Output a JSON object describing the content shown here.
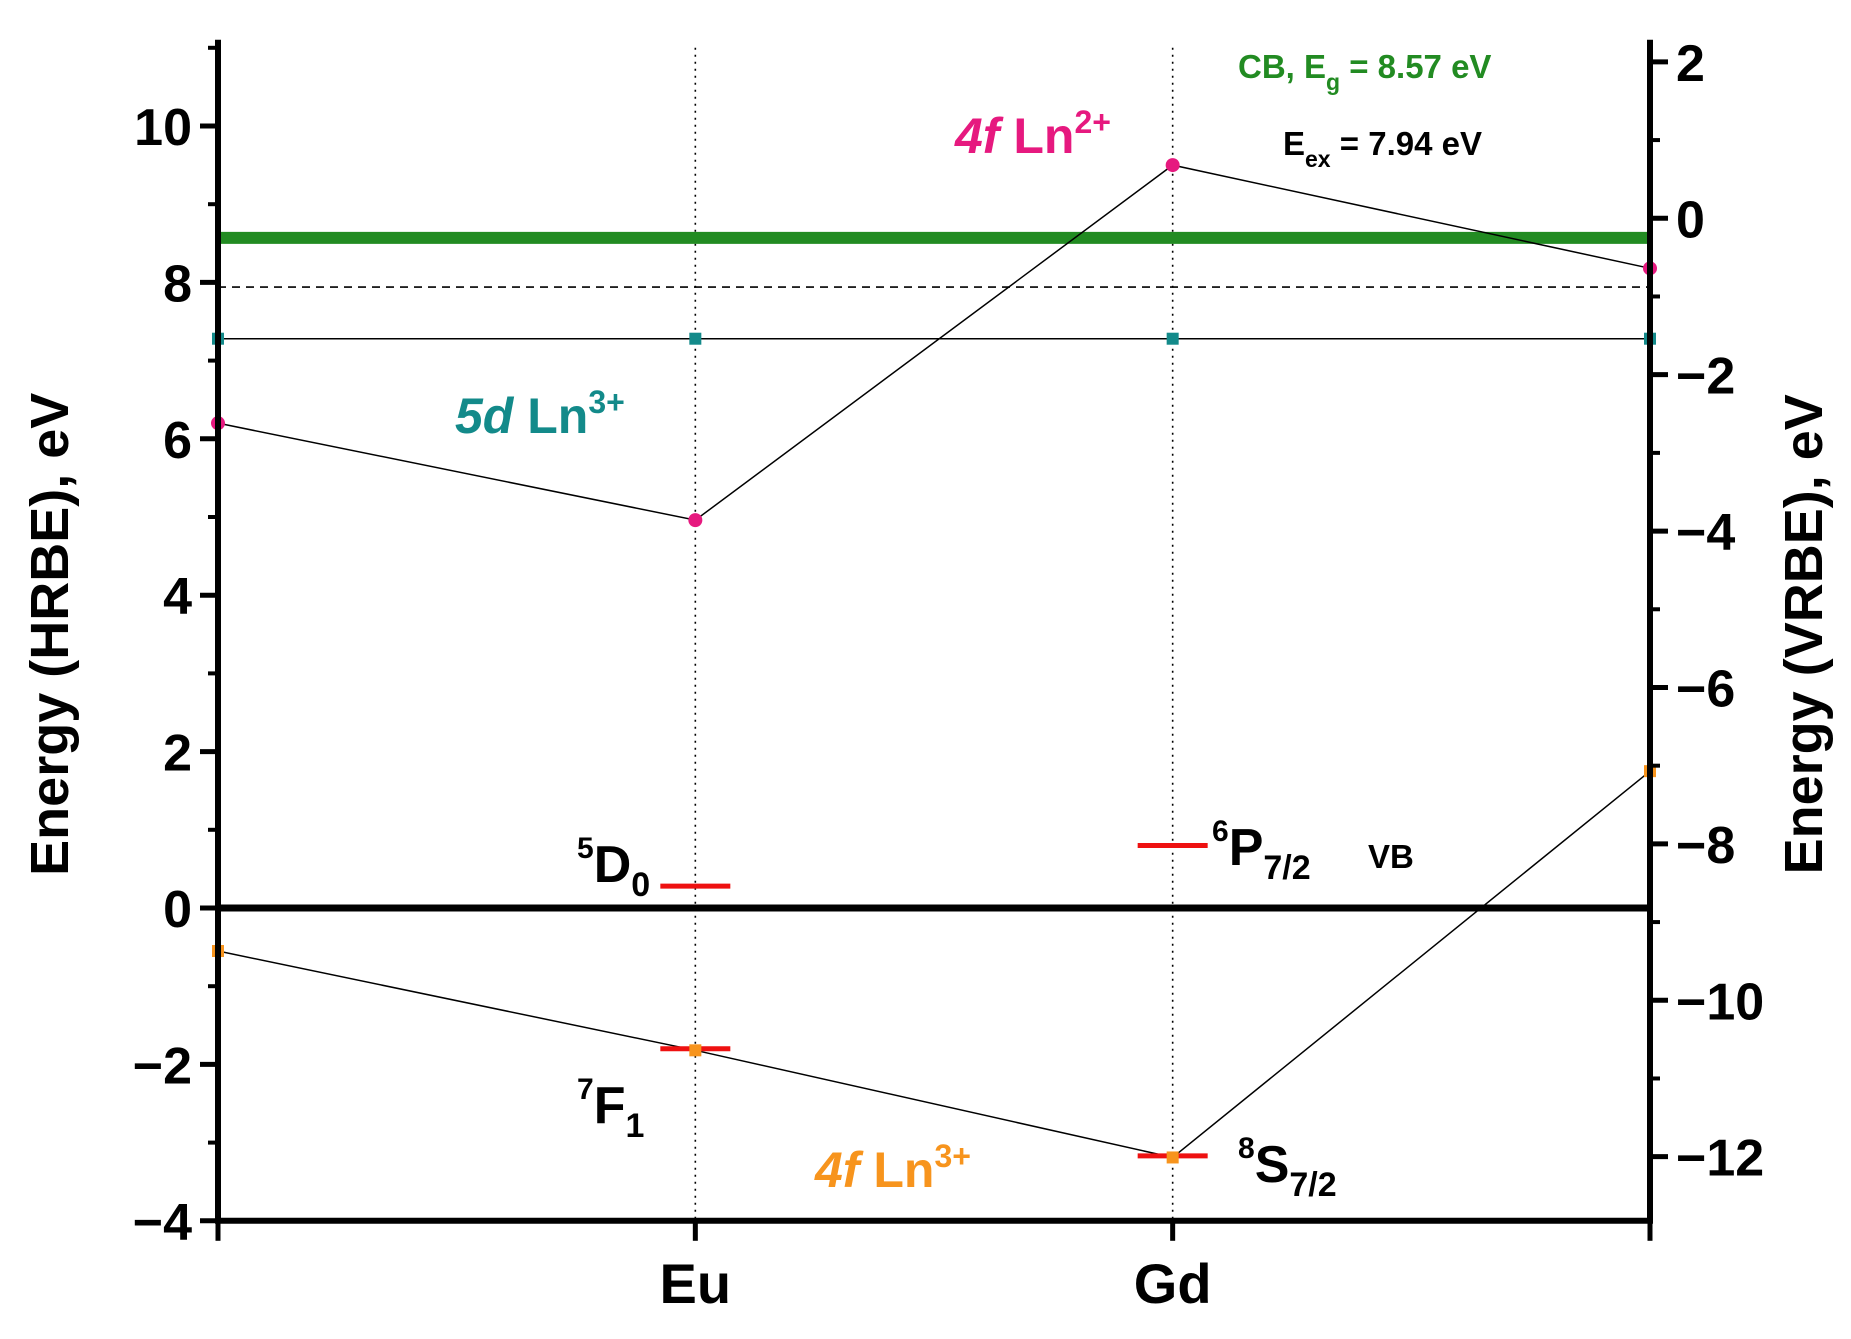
{
  "chart_data": {
    "type": "line",
    "categories": [
      "",
      "Eu",
      "Gd",
      ""
    ],
    "x_axis": {
      "tick_labels": [
        "Eu",
        "Gd"
      ]
    },
    "y_left": {
      "label": "Energy (HRBE), eV",
      "ylim": [
        -4,
        11
      ],
      "ticks": [
        -4,
        -2,
        0,
        2,
        4,
        6,
        8,
        10
      ],
      "tick_labels": [
        "−4",
        "−2",
        "0",
        "2",
        "4",
        "6",
        "8",
        "10"
      ]
    },
    "y_right": {
      "label": "Energy (VRBE), eV",
      "offset": -8.82,
      "ticks": [
        2,
        0,
        -2,
        -4,
        -6,
        -8,
        -10,
        -12
      ],
      "tick_labels": [
        "2",
        "0",
        "−2",
        "−4",
        "−6",
        "−8",
        "−10",
        "−12"
      ]
    },
    "grid": false,
    "reference_lines": {
      "cb": {
        "value": 8.57,
        "color": "#228b22"
      },
      "exciton": {
        "value": 7.94,
        "style": "dashed"
      },
      "vb": {
        "value": 0,
        "color": "#000000"
      }
    },
    "series": [
      {
        "id": "ln2_4f",
        "color": "#e6197f",
        "marker": "circle",
        "values": [
          6.2,
          4.96,
          9.5,
          8.18
        ]
      },
      {
        "id": "ln3_5d",
        "color": "#138a8a",
        "marker": "square",
        "values": [
          7.28,
          7.28,
          7.28,
          7.28
        ]
      },
      {
        "id": "ln3_4f",
        "color": "#f7941d",
        "marker": "square",
        "values": [
          -0.55,
          -1.82,
          -3.19,
          1.75
        ]
      }
    ],
    "excited_levels": [
      {
        "category": "Eu",
        "value": 0.28,
        "color": "#ee1111"
      },
      {
        "category": "Eu",
        "value": -1.8,
        "color": "#ee1111"
      },
      {
        "category": "Gd",
        "value": 0.8,
        "color": "#ee1111"
      },
      {
        "category": "Gd",
        "value": -3.17,
        "color": "#ee1111"
      }
    ],
    "annotations": {
      "cb": {
        "base": "CB, E",
        "sub": "g",
        "rest": " = 8.57 eV",
        "color": "#228b22"
      },
      "eex": {
        "base": "E",
        "sub": "ex",
        "rest": " = 7.94 eV",
        "color": "#000000"
      },
      "ln2": {
        "italic": "4f",
        "base": " Ln",
        "sup": "2+",
        "color": "#e6197f"
      },
      "d5": {
        "italic": "5d",
        "base": " Ln",
        "sup": "3+",
        "color": "#138a8a"
      },
      "ln3": {
        "italic": "4f",
        "base": " Ln",
        "sup": "3+",
        "color": "#f7941d"
      },
      "vb": {
        "text": "VB"
      },
      "d0": {
        "sup": "5",
        "base": "D",
        "sub": "0"
      },
      "f1": {
        "sup": "7",
        "base": "F",
        "sub": "1"
      },
      "p72": {
        "sup": "6",
        "base": "P",
        "sub": "7/2"
      },
      "s72": {
        "sup": "8",
        "base": "S",
        "sub": "7/2"
      }
    }
  }
}
